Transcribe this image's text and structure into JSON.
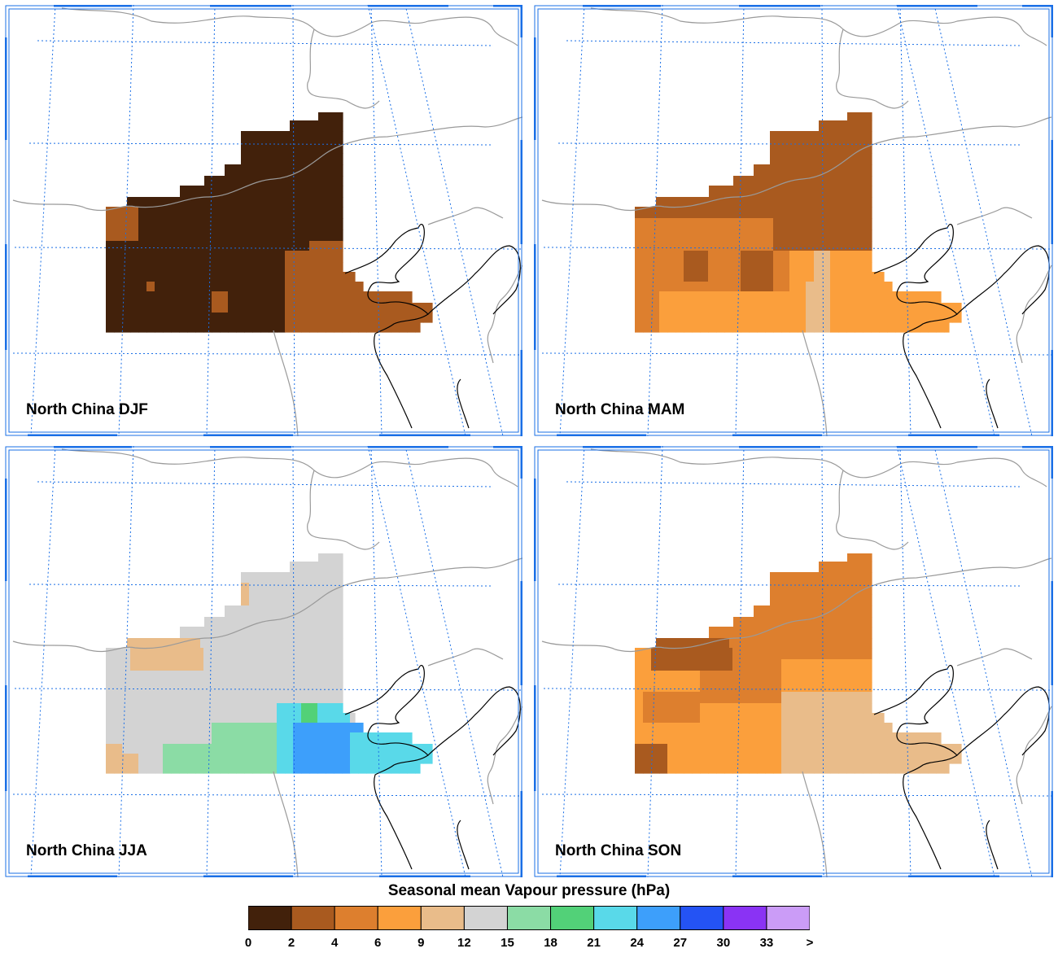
{
  "panels": [
    {
      "label": "North China DJF",
      "grid": [
        "...........................",
        "...........................",
        "...........................",
        ".........................00",
        "..................0....00000",
        "...............00000000000",
        "...........00000000000000000",
        "....2200000000000000000000000",
        "....2000000000000000000000000",
        "....2000000000000000000000000",
        "....0000000000000000000000000",
        "....000000000000000000000001",
        "....00000000000000000000011111",
        "....000000000000000000000011111",
        "....0000000000000000000111111111",
        "....000000000000000000011111111111",
        "....00000000000000000011111111111111111",
        "....000000000000000000111111111111111111",
        "....0000000000000000001111111111111111111",
        "....00000000000000000011111111111111111112"
      ]
    },
    {
      "label": "North China MAM"
    },
    {
      "label": "North China JJA"
    },
    {
      "label": "North China SON"
    }
  ],
  "legend": {
    "title": "Seasonal mean Vapour pressure (hPa)",
    "tick_labels": [
      "0",
      "2",
      "4",
      "6",
      "9",
      "12",
      "15",
      "18",
      "21",
      "24",
      "27",
      "30",
      "33",
      ">"
    ],
    "colors": [
      "#42210b",
      "#a95a1f",
      "#dd7f2e",
      "#fb9f3c",
      "#e9bc8a",
      "#d3d3d3",
      "#8bdca5",
      "#52d178",
      "#59d9e9",
      "#3d9ffb",
      "#2453f4",
      "#8a33f4",
      "#cb9cf7"
    ]
  },
  "colors": {
    "grid_lines": "#1a6fe6",
    "frame": "#1a6fe6",
    "borders": "#9a9a9a",
    "coastline": "#000000"
  }
}
